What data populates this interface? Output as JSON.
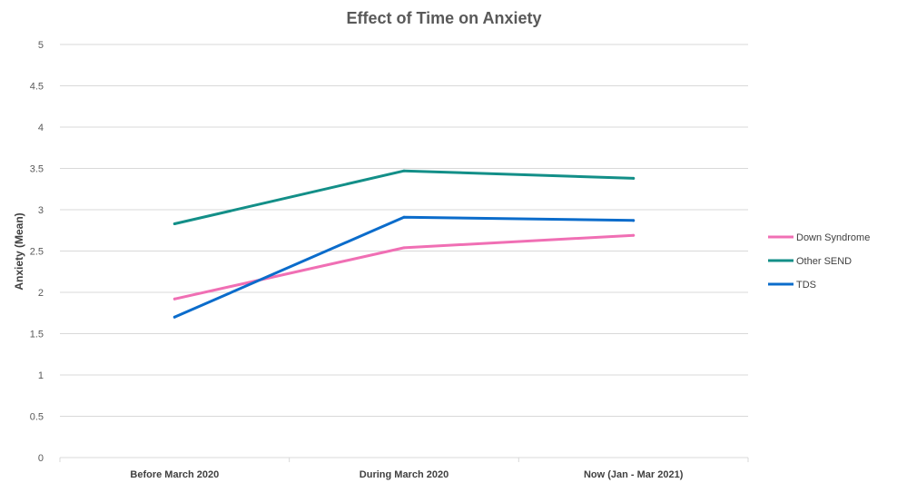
{
  "chart_data": {
    "type": "line",
    "title": "Effect of Time on Anxiety",
    "xlabel": "",
    "ylabel": "Anxiety (Mean)",
    "categories": [
      "Before March 2020",
      "During March 2020",
      "Now (Jan - Mar 2021)"
    ],
    "ylim": [
      0,
      5
    ],
    "yticks": [
      "0",
      "0.5",
      "1",
      "1.5",
      "2",
      "2.5",
      "3",
      "3.5",
      "4",
      "4.5",
      "5"
    ],
    "grid": true,
    "legend_position": "right",
    "series": [
      {
        "name": "Down Syndrome",
        "color": "#f06fb4",
        "values": [
          1.92,
          2.54,
          2.69
        ]
      },
      {
        "name": "Other SEND",
        "color": "#138f88",
        "values": [
          2.83,
          3.47,
          3.38
        ]
      },
      {
        "name": "TDS",
        "color": "#0b6ccb",
        "values": [
          1.7,
          2.91,
          2.87
        ]
      }
    ]
  }
}
